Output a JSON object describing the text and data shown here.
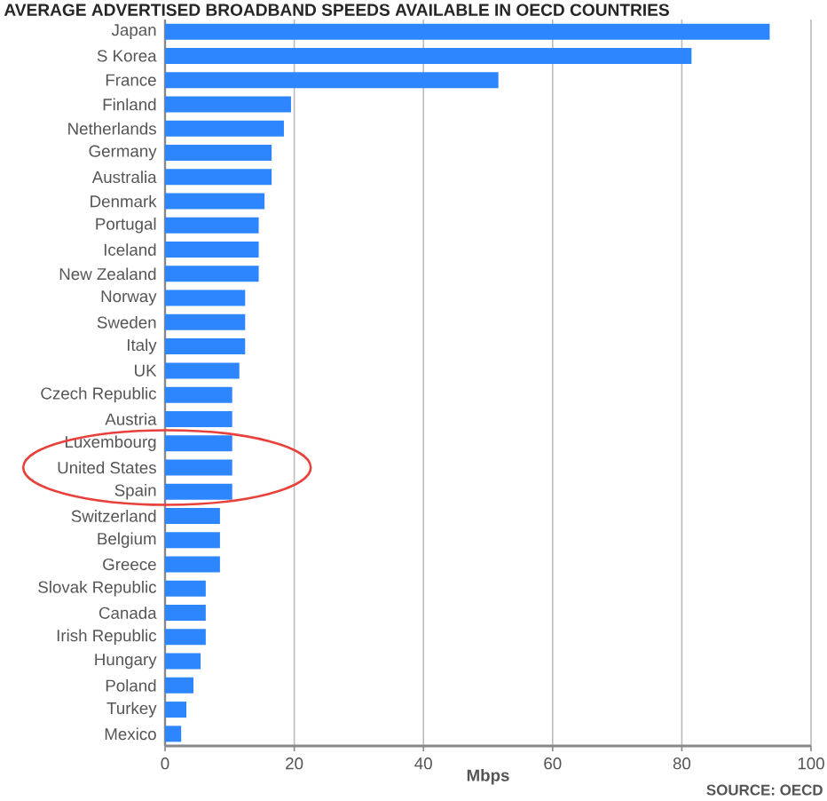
{
  "chart_data": {
    "type": "bar",
    "orientation": "horizontal",
    "title": "AVERAGE ADVERTISED BROADBAND SPEEDS AVAILABLE IN OECD COUNTRIES",
    "xlabel": "Mbps",
    "annotations": [
      "SOURCE: OECD"
    ],
    "categories": [
      "Japan",
      "S Korea",
      "France",
      "Finland",
      "Netherlands",
      "Germany",
      "Australia",
      "Denmark",
      "Portugal",
      "Iceland",
      "New Zealand",
      "Norway",
      "Sweden",
      "Italy",
      "UK",
      "Czech Republic",
      "Austria",
      "Luxembourg",
      "United States",
      "Spain",
      "Switzerland",
      "Belgium",
      "Greece",
      "Slovak Republic",
      "Canada",
      "Irish Republic",
      "Hungary",
      "Poland",
      "Turkey",
      "Mexico"
    ],
    "values": [
      93.6,
      81.5,
      51.6,
      19.5,
      18.4,
      16.5,
      16.5,
      15.4,
      14.5,
      14.5,
      14.5,
      12.4,
      12.4,
      12.4,
      11.5,
      10.4,
      10.4,
      10.4,
      10.4,
      10.4,
      8.5,
      8.5,
      8.5,
      6.3,
      6.3,
      6.3,
      5.5,
      4.4,
      3.3,
      2.5
    ],
    "color": "#2e86ff",
    "xlim": [
      0,
      100
    ],
    "xticks": [
      0,
      20,
      40,
      60,
      80,
      100
    ],
    "grid": "x"
  }
}
